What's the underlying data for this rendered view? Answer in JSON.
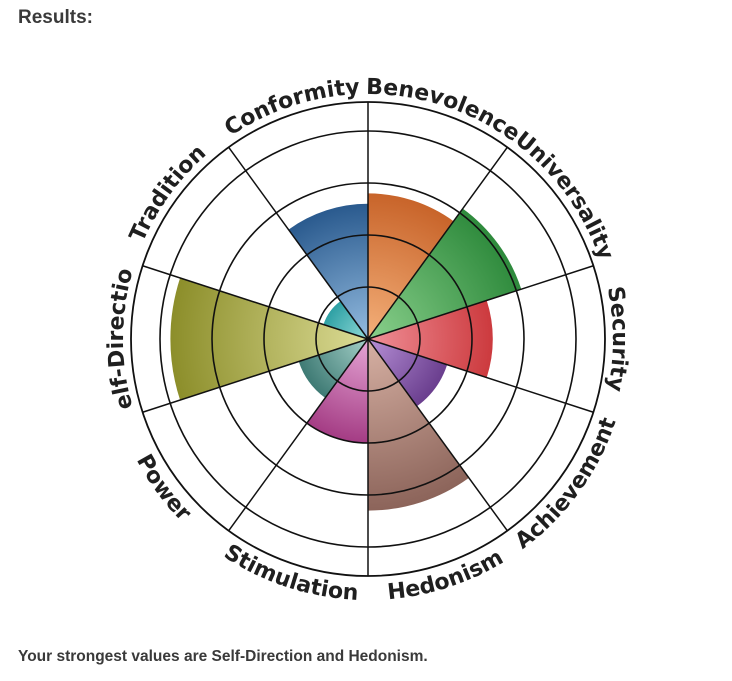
{
  "header": {
    "title": "Results:"
  },
  "summary": {
    "text": "Your strongest values are Self-Direction and Hedonism."
  },
  "chart_data": {
    "type": "polar-area",
    "rmax": 4,
    "rings": [
      1,
      2,
      3,
      4
    ],
    "grid": true,
    "categories": [
      {
        "name": "Benevolence",
        "value": 2.8,
        "color": "#c8642a",
        "light": "#f4b07a"
      },
      {
        "name": "Universality",
        "value": 3.1,
        "color": "#2e8a3c",
        "light": "#8ad08c"
      },
      {
        "name": "Security",
        "value": 2.4,
        "color": "#cc3a3e",
        "light": "#f09098"
      },
      {
        "name": "Achievement",
        "value": 1.6,
        "color": "#6a3e8e",
        "light": "#b690d6"
      },
      {
        "name": "Hedonism",
        "value": 3.3,
        "color": "#8c645a",
        "light": "#d7b1a4"
      },
      {
        "name": "Stimulation",
        "value": 2.0,
        "color": "#a43c84",
        "light": "#e6a6d6"
      },
      {
        "name": "Power",
        "value": 1.4,
        "color": "#3e7a74",
        "light": "#a4d0c8"
      },
      {
        "name": "Self-Direction",
        "value": 3.8,
        "color": "#8c8e2a",
        "light": "#dcdc96"
      },
      {
        "name": "Tradition",
        "value": 0.9,
        "color": "#2ea0a4",
        "light": "#90dad8"
      },
      {
        "name": "Conformity",
        "value": 2.6,
        "color": "#2a5a8e",
        "light": "#94bce0"
      }
    ]
  }
}
